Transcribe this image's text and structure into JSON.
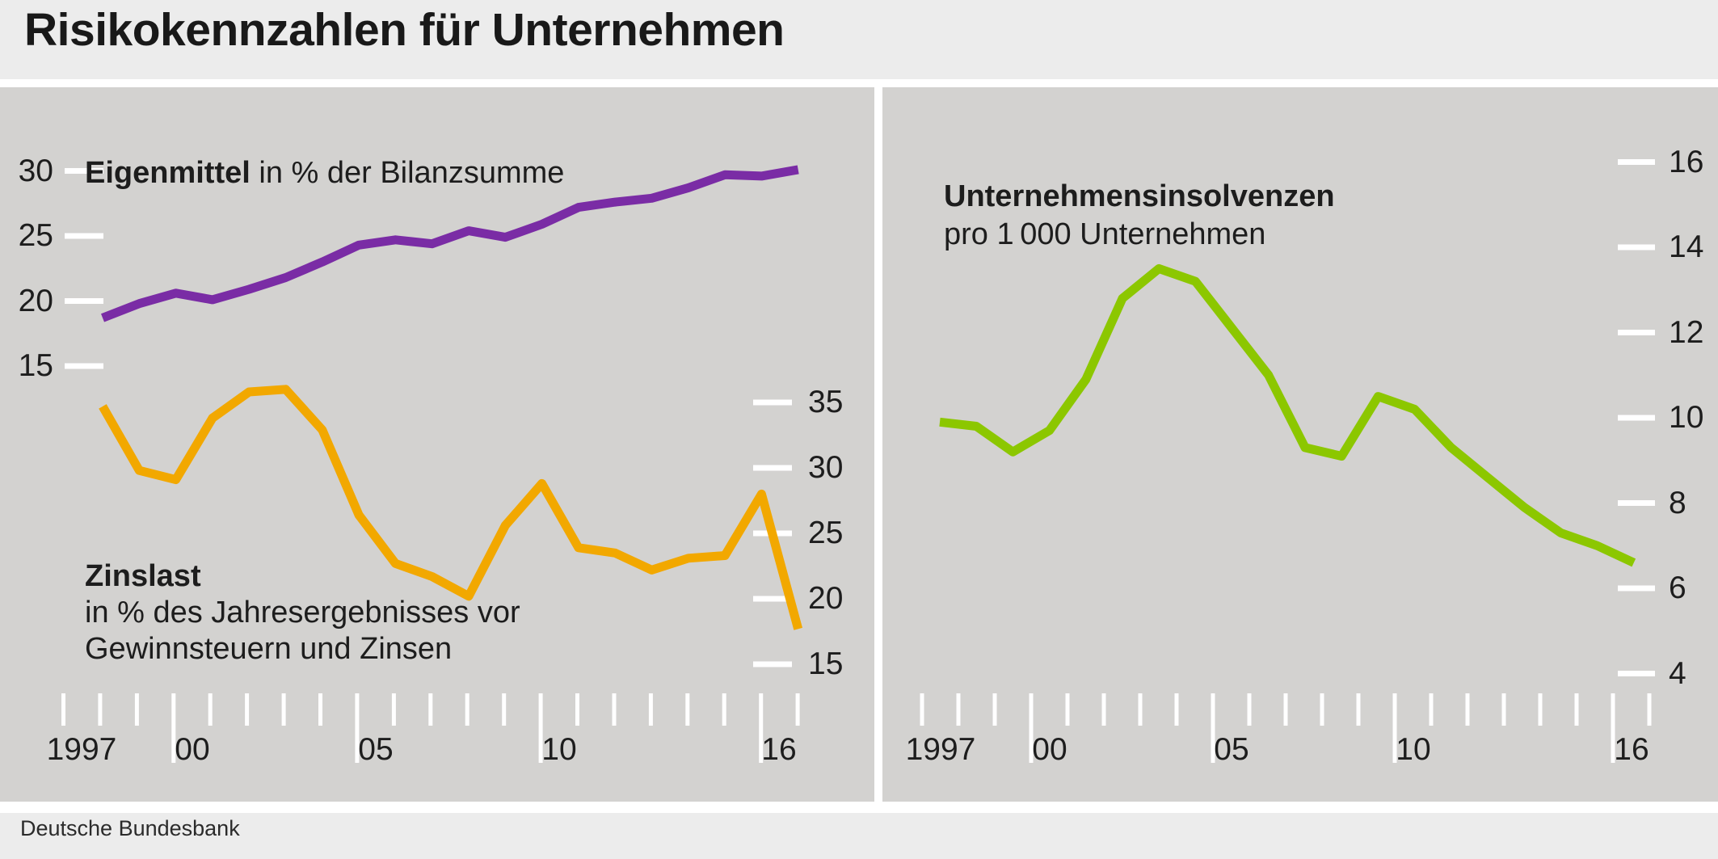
{
  "title": "Risikokennzahlen für Unternehmen",
  "footer": "Deutsche Bundesbank",
  "colors": {
    "eigenmittel": "#7A2CA5",
    "zinslast": "#F2A800",
    "insolvenzen": "#8CC700",
    "panel_background": "#d3d2d0",
    "page_background": "#ececec",
    "axis_marks": "#ffffff",
    "text": "#1d1d1d"
  },
  "chart_data": [
    {
      "type": "line",
      "panel": "left",
      "x": [
        1997,
        1998,
        1999,
        2000,
        2001,
        2002,
        2003,
        2004,
        2005,
        2006,
        2007,
        2008,
        2009,
        2010,
        2011,
        2012,
        2013,
        2014,
        2015,
        2016
      ],
      "x_axis": {
        "tick_count": 21,
        "labels": [
          {
            "text": "1997",
            "year": 1997
          },
          {
            "text": "00",
            "year": 2000
          },
          {
            "text": "05",
            "year": 2005
          },
          {
            "text": "10",
            "year": 2010
          },
          {
            "text": "16",
            "year": 2016
          }
        ]
      },
      "left_axis": {
        "ticks": [
          30,
          25,
          20,
          15
        ]
      },
      "right_axis": {
        "ticks": [
          35,
          30,
          25,
          20,
          15
        ]
      },
      "series": [
        {
          "name": "eigenmittel",
          "legend_bold": "Eigenmittel",
          "legend_rest": " in % der Bilanzsumme",
          "color": "#7A2CA5",
          "axis": "left",
          "values": [
            18.7,
            19.8,
            20.6,
            20.1,
            20.9,
            21.8,
            23.0,
            24.3,
            24.7,
            24.4,
            25.4,
            24.9,
            25.9,
            27.2,
            27.6,
            27.9,
            28.7,
            29.7,
            29.6,
            30.1
          ]
        },
        {
          "name": "zinslast",
          "legend_bold": "Zinslast",
          "legend_lines": [
            "in % des Jahresergebnisses vor",
            "Gewinnsteuern und Zinsen"
          ],
          "color": "#F2A800",
          "axis": "right",
          "values": [
            34.7,
            29.8,
            29.1,
            33.8,
            35.8,
            36.0,
            32.9,
            26.4,
            22.7,
            21.7,
            20.2,
            25.6,
            28.8,
            23.9,
            23.5,
            22.2,
            23.1,
            23.3,
            28.0,
            17.7
          ]
        }
      ]
    },
    {
      "type": "line",
      "panel": "right",
      "x": [
        1997,
        1998,
        1999,
        2000,
        2001,
        2002,
        2003,
        2004,
        2005,
        2006,
        2007,
        2008,
        2009,
        2010,
        2011,
        2012,
        2013,
        2014,
        2015,
        2016
      ],
      "x_axis": {
        "tick_count": 21,
        "labels": [
          {
            "text": "1997",
            "year": 1997
          },
          {
            "text": "00",
            "year": 2000
          },
          {
            "text": "05",
            "year": 2005
          },
          {
            "text": "10",
            "year": 2010
          },
          {
            "text": "16",
            "year": 2016
          }
        ]
      },
      "right_axis": {
        "ticks": [
          16,
          14,
          12,
          10,
          8,
          6,
          4
        ]
      },
      "series": [
        {
          "name": "insolvenzen",
          "legend_bold": "Unternehmensinsolvenzen",
          "legend_lines": [
            "pro 1 000 Unternehmen"
          ],
          "color": "#8CC700",
          "axis": "right",
          "values": [
            9.9,
            9.8,
            9.2,
            9.7,
            10.9,
            12.8,
            13.5,
            13.2,
            12.1,
            11.0,
            9.3,
            9.1,
            10.5,
            10.2,
            9.3,
            8.6,
            7.9,
            7.3,
            7.0,
            6.6
          ]
        }
      ]
    }
  ]
}
